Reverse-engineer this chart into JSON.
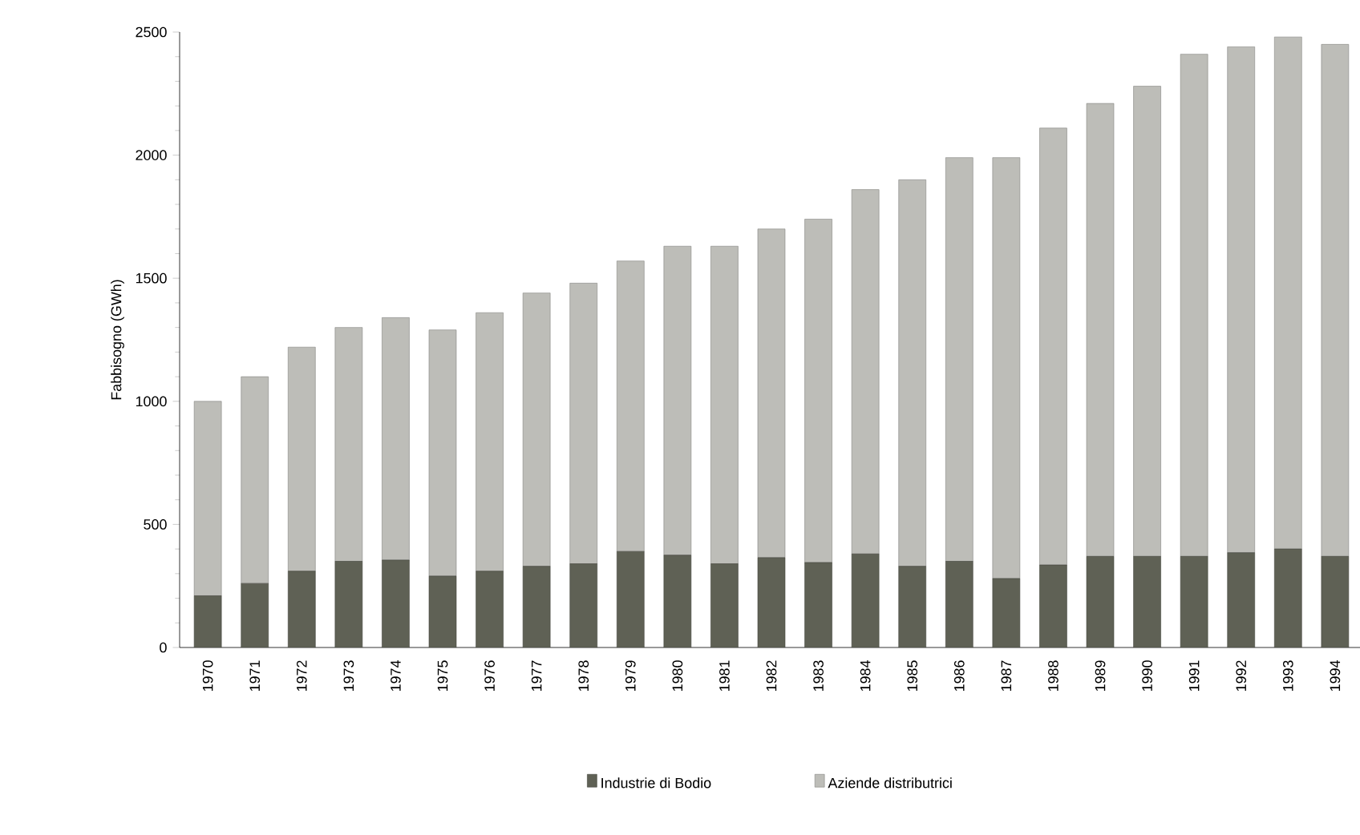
{
  "chart_data": {
    "type": "bar",
    "stacked": true,
    "ylabel": "Fabbisogno (GWh)",
    "categories": [
      "1970",
      "1971",
      "1972",
      "1973",
      "1974",
      "1975",
      "1976",
      "1977",
      "1978",
      "1979",
      "1980",
      "1981",
      "1982",
      "1983",
      "1984",
      "1985",
      "1986",
      "1987",
      "1988",
      "1989",
      "1990",
      "1991",
      "1992",
      "1993",
      "1994"
    ],
    "series": [
      {
        "name": "Industrie di Bodio",
        "color": "#5f6155",
        "values": [
          210,
          260,
          310,
          350,
          355,
          290,
          310,
          330,
          340,
          390,
          375,
          340,
          365,
          345,
          380,
          330,
          350,
          280,
          335,
          370,
          370,
          370,
          385,
          400,
          370
        ]
      },
      {
        "name": "Aziende distributrici",
        "color": "#bdbdb8",
        "values": [
          790,
          840,
          910,
          950,
          985,
          1000,
          1050,
          1110,
          1140,
          1180,
          1255,
          1290,
          1335,
          1395,
          1480,
          1570,
          1640,
          1710,
          1775,
          1840,
          1910,
          2040,
          2055,
          2080,
          2080
        ]
      }
    ],
    "ylim": [
      0,
      2500
    ],
    "yticks": [
      0,
      500,
      1000,
      1500,
      2000,
      2500
    ],
    "grid": false,
    "legend": "bottom"
  }
}
